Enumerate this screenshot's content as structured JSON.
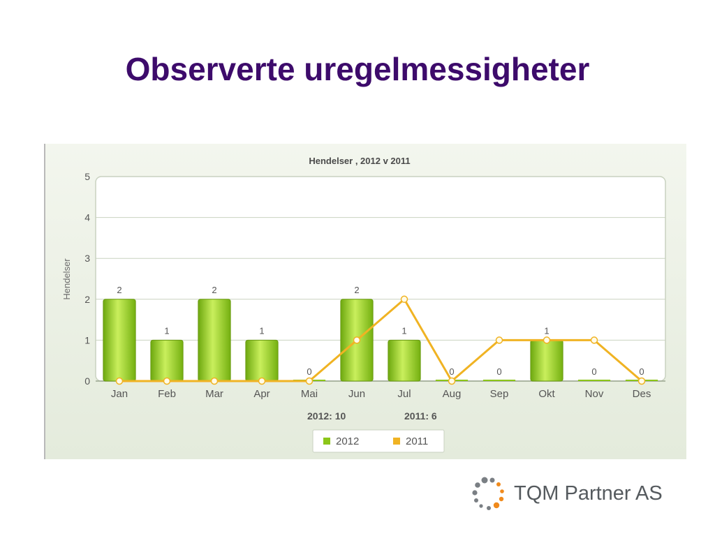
{
  "slide": {
    "title": "Observerte uregelmessigheter"
  },
  "footer": {
    "company": "TQM Partner AS"
  },
  "colors": {
    "title": "#3d0b6b",
    "bar_2012": "#8cc619",
    "line_2011": "#f0b323",
    "logo_gray": "#7a7f84",
    "logo_orange": "#f08a1c"
  },
  "chart_data": {
    "type": "bar",
    "title": "Hendelser , 2012 v 2011",
    "xlabel": "",
    "ylabel": "Hendelser",
    "ylim": [
      0,
      5
    ],
    "yticks": [
      0,
      1,
      2,
      3,
      4,
      5
    ],
    "grid": true,
    "legend_position": "bottom",
    "categories": [
      "Jan",
      "Feb",
      "Mar",
      "Apr",
      "Mai",
      "Jun",
      "Jul",
      "Aug",
      "Sep",
      "Okt",
      "Nov",
      "Des"
    ],
    "series": [
      {
        "name": "2012",
        "type": "bar",
        "color": "#8cc619",
        "values": [
          2,
          1,
          2,
          1,
          0,
          2,
          1,
          0,
          0,
          1,
          0,
          0
        ],
        "show_labels": true
      },
      {
        "name": "2011",
        "type": "line",
        "color": "#f0b323",
        "values": [
          0,
          0,
          0,
          0,
          0,
          1,
          2,
          0,
          1,
          1,
          1,
          0
        ],
        "show_labels": false
      }
    ],
    "totals": [
      {
        "label": "2012:",
        "value": "10"
      },
      {
        "label": "2011:",
        "value": "6"
      }
    ]
  }
}
